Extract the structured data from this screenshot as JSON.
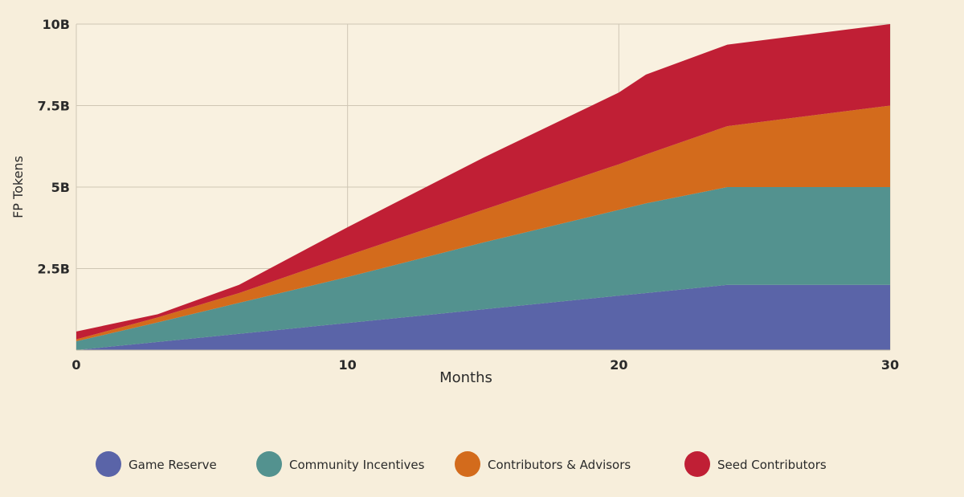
{
  "chart_data": {
    "type": "stacked_area",
    "x_label": "Months",
    "y_label": "FP Tokens",
    "x": [
      0,
      3,
      6,
      10,
      15,
      20,
      21,
      24,
      30
    ],
    "series": [
      {
        "name": "Game Reserve",
        "color": "#5a64a8",
        "values": [
          0.0,
          0.25,
          0.5,
          0.83,
          1.25,
          1.67,
          1.75,
          2.0,
          2.0
        ]
      },
      {
        "name": "Community Incentives",
        "color": "#53928f",
        "values": [
          0.27,
          0.6,
          0.95,
          1.41,
          2.05,
          2.63,
          2.75,
          3.0,
          3.0
        ]
      },
      {
        "name": "Contributors & Advisors",
        "color": "#d36b1c",
        "values": [
          0.06,
          0.15,
          0.3,
          0.66,
          1.0,
          1.4,
          1.5,
          1.87,
          2.5
        ]
      },
      {
        "name": "Seed Contributors",
        "color": "#c01f35",
        "values": [
          0.24,
          0.1,
          0.25,
          0.87,
          1.6,
          2.2,
          2.45,
          2.5,
          2.5
        ]
      }
    ],
    "xlim": [
      0,
      30
    ],
    "xticks": [
      0,
      10,
      20,
      30
    ],
    "ylim": [
      0,
      10
    ],
    "yticks": [
      {
        "value": 2.5,
        "label": "2.5B"
      },
      {
        "value": 5,
        "label": "5B"
      },
      {
        "value": 7.5,
        "label": "7.5B"
      },
      {
        "value": 10,
        "label": "10B"
      }
    ],
    "grid": true
  }
}
